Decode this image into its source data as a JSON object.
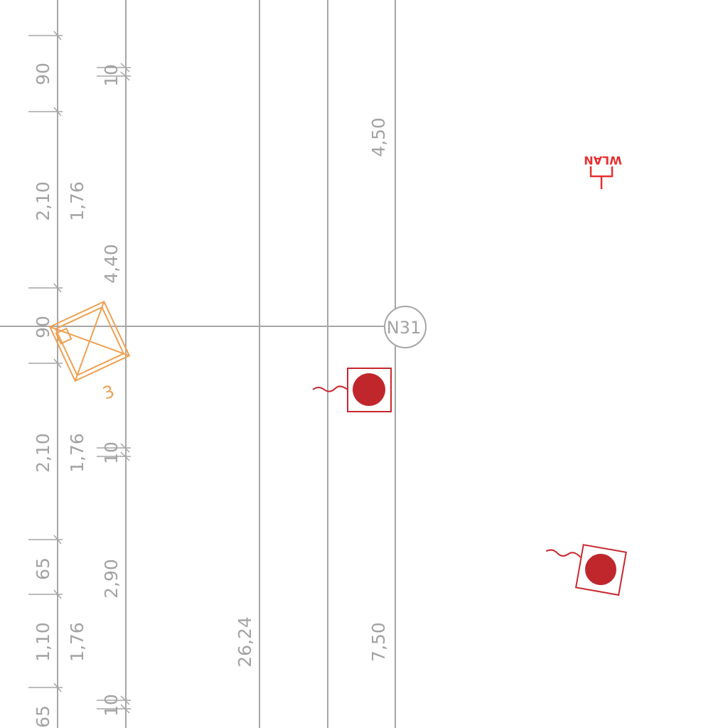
{
  "dimensions": {
    "left_col": [
      "90",
      "2,10",
      "90",
      "2,10",
      "65",
      "1,10",
      "65"
    ],
    "second_col": [
      "1,76",
      "1,76",
      "1,76"
    ],
    "third_col": [
      "10",
      "4,40",
      "10",
      "2,90",
      "10"
    ],
    "center_labels": [
      "26,24",
      "4,50",
      "7,50"
    ]
  },
  "grid_marker": "N31",
  "wlan_label": "WLAN",
  "symbol_label": "3",
  "colors": {
    "dimension_gray": "#a3a3a3",
    "orange": "#f0a050",
    "red": "#c0272d",
    "wlan_red": "#e53030"
  }
}
